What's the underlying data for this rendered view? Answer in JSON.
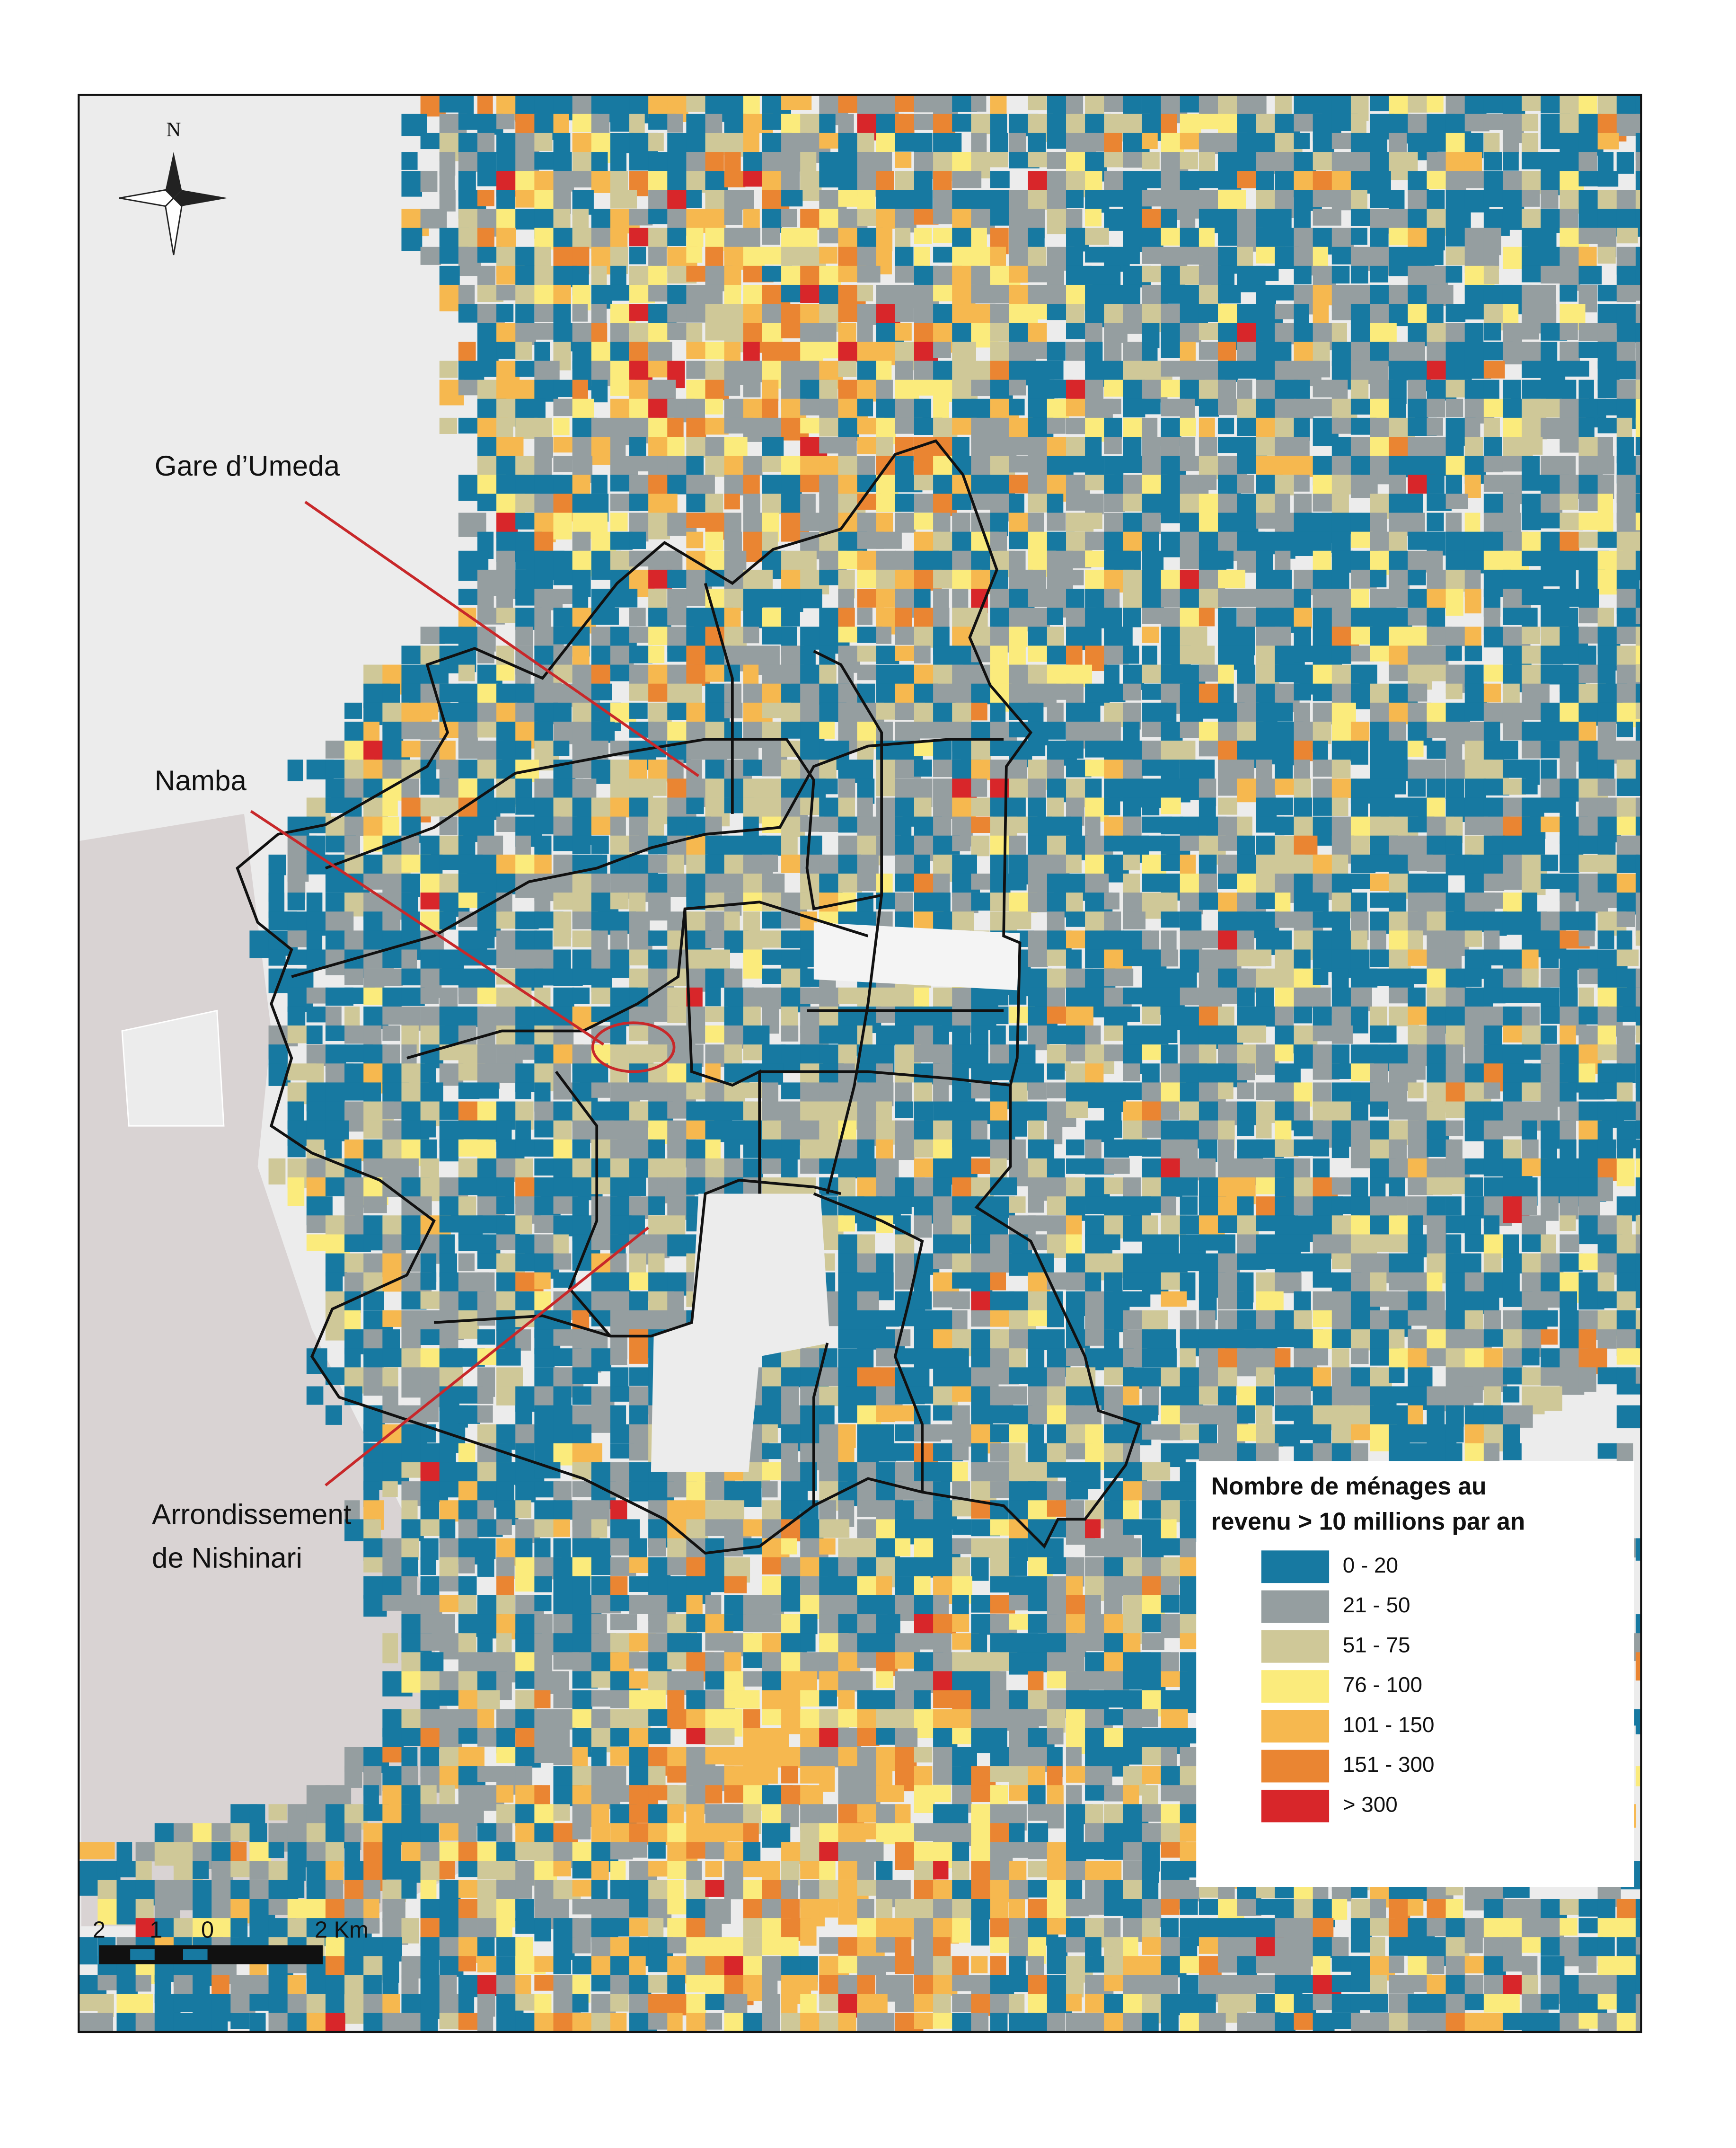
{
  "map": {
    "north": "N",
    "annotations": [
      {
        "lines": [
          "Gare d’Umeda"
        ]
      },
      {
        "lines": [
          "Namba"
        ]
      },
      {
        "lines": [
          "Arrondissement",
          "de Nishinari"
        ]
      }
    ],
    "legend": {
      "title": [
        "Nombre de ménages au",
        "revenu > 10 millions par an"
      ],
      "items": [
        {
          "label": "0 - 20",
          "color": "#1779a1"
        },
        {
          "label": "21 - 50",
          "color": "#959ea0"
        },
        {
          "label": "51 - 75",
          "color": "#cfc898"
        },
        {
          "label": "76 - 100",
          "color": "#fbeb7c"
        },
        {
          "label": "101 - 150",
          "color": "#f6b84f"
        },
        {
          "label": "151 - 300",
          "color": "#ea8532"
        },
        {
          "label": "> 300",
          "color": "#d8262a"
        }
      ]
    },
    "scale": {
      "labels": [
        "2",
        "1",
        "0",
        "2 Km"
      ]
    }
  }
}
